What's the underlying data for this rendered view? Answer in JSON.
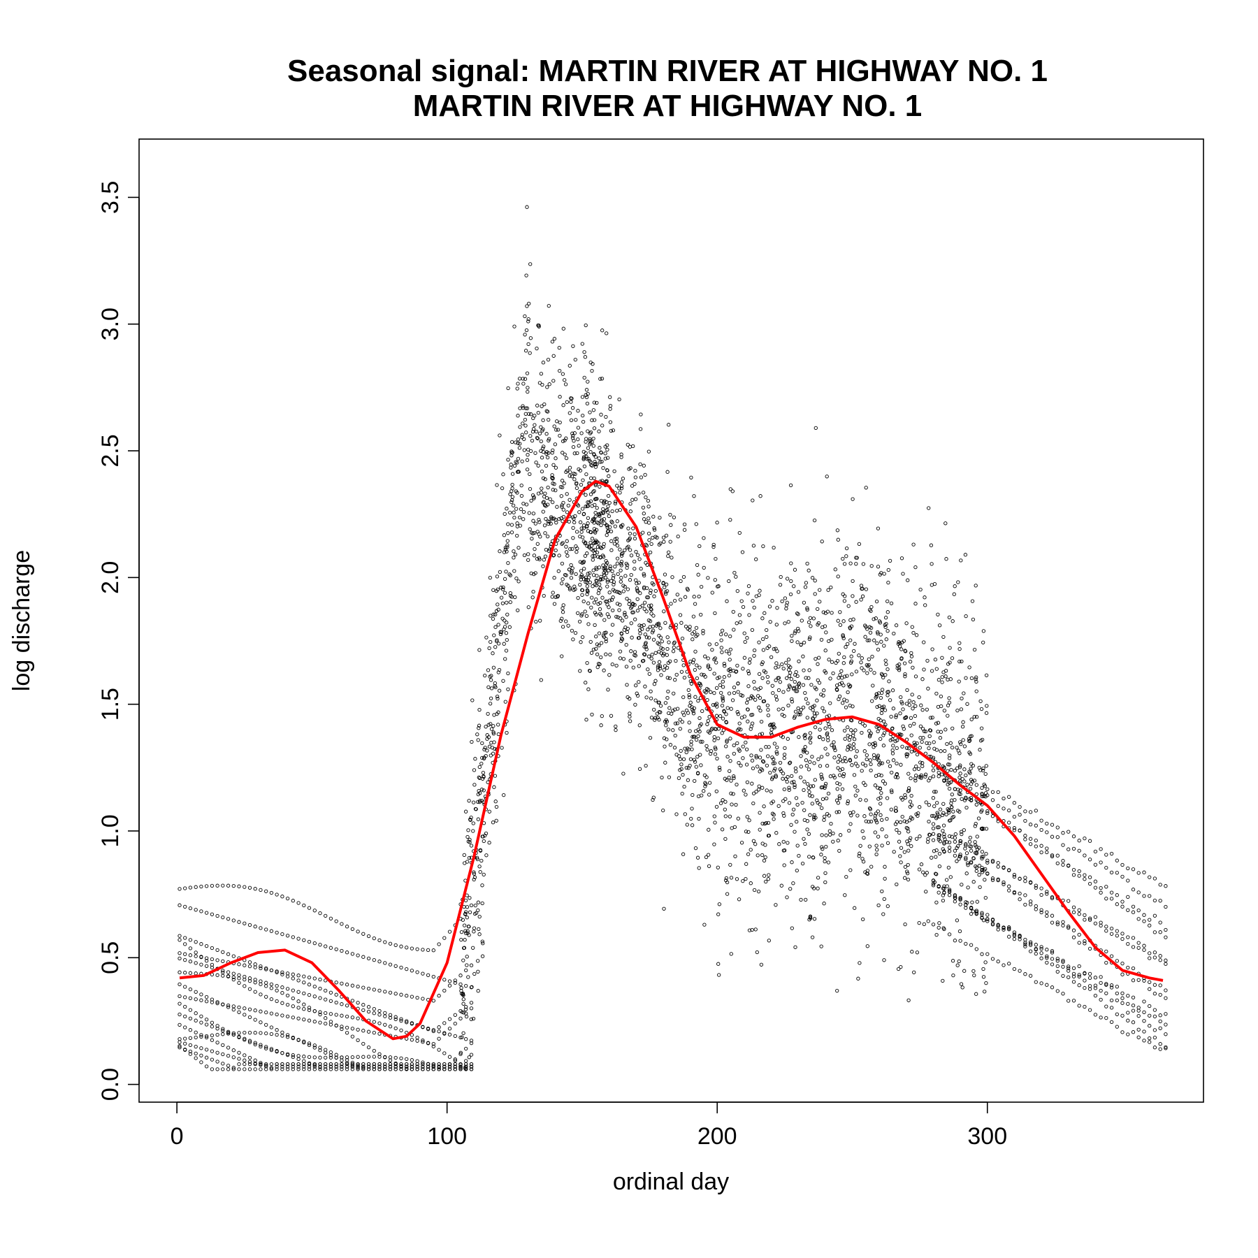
{
  "chart_data": {
    "type": "scatter",
    "title": "Seasonal signal: MARTIN RIVER AT HIGHWAY NO. 1",
    "subtitle": "MARTIN RIVER AT HIGHWAY NO. 1",
    "xlabel": "ordinal day",
    "ylabel": "log discharge",
    "xlim": [
      -14,
      380
    ],
    "ylim": [
      -0.07,
      3.73
    ],
    "xticks": [
      0,
      100,
      200,
      300
    ],
    "yticks": [
      0.0,
      0.5,
      1.0,
      1.5,
      2.0,
      2.5,
      3.0,
      3.5
    ],
    "xtick_labels": [
      "0",
      "100",
      "200",
      "300"
    ],
    "ytick_labels": [
      "0.0",
      "0.5",
      "1.0",
      "1.5",
      "2.0",
      "2.5",
      "3.0",
      "3.5"
    ],
    "grid": false,
    "colors": {
      "points": "#000000",
      "smooth": "#ff0000"
    },
    "series": [
      {
        "kind": "points",
        "marker": "open-circle",
        "description_ranges": [
          {
            "x": [
              1,
              120
            ],
            "y": [
              0.06,
              0.78
            ]
          },
          {
            "x": [
              110,
              160
            ],
            "y": [
              0.2,
              3.6
            ]
          },
          {
            "x": [
              160,
              300
            ],
            "y": [
              0.25,
              3.3
            ]
          },
          {
            "x": [
              300,
              366
            ],
            "y": [
              0.12,
              1.3
            ]
          }
        ]
      },
      {
        "kind": "line",
        "x": [
          1,
          10,
          20,
          30,
          40,
          50,
          60,
          70,
          80,
          85,
          90,
          100,
          110,
          120,
          130,
          140,
          150,
          155,
          160,
          170,
          180,
          190,
          200,
          210,
          220,
          230,
          240,
          250,
          260,
          270,
          280,
          290,
          300,
          310,
          320,
          330,
          340,
          350,
          360,
          365
        ],
        "y": [
          0.42,
          0.43,
          0.48,
          0.52,
          0.53,
          0.48,
          0.37,
          0.25,
          0.18,
          0.19,
          0.24,
          0.48,
          0.9,
          1.38,
          1.78,
          2.15,
          2.34,
          2.38,
          2.36,
          2.2,
          1.92,
          1.62,
          1.42,
          1.37,
          1.37,
          1.41,
          1.44,
          1.45,
          1.42,
          1.35,
          1.27,
          1.18,
          1.1,
          0.98,
          0.83,
          0.68,
          0.54,
          0.45,
          0.42,
          0.41
        ]
      }
    ]
  }
}
